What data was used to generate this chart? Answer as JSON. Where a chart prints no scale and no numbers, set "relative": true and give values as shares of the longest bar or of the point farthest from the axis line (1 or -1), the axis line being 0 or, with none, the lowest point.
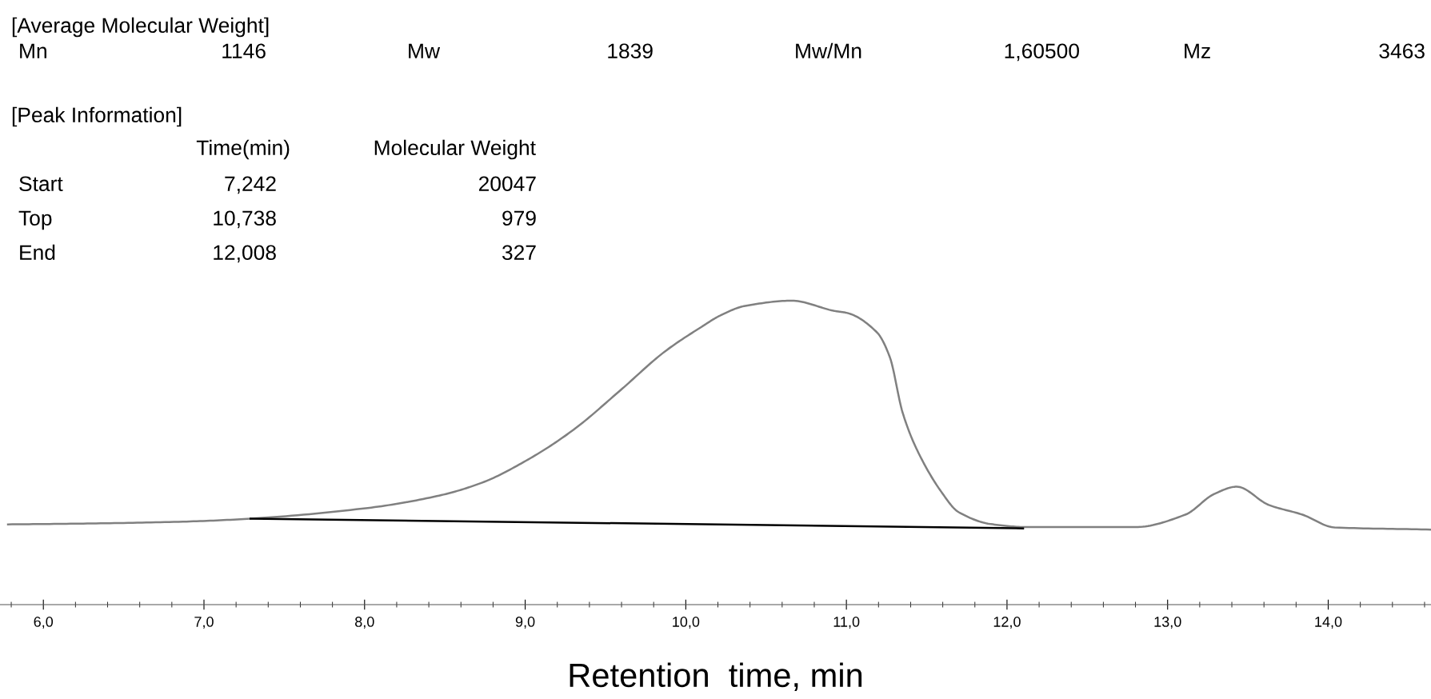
{
  "chart_data": {
    "type": "line",
    "relative": true,
    "xlabel": "Retention  time, min",
    "xlim": [
      5.73,
      14.64
    ],
    "xticks": [
      {
        "value": 6,
        "label": "6,0"
      },
      {
        "value": 7,
        "label": "7,0"
      },
      {
        "value": 8,
        "label": "8,0"
      },
      {
        "value": 9,
        "label": "9,0"
      },
      {
        "value": 10,
        "label": "10,0"
      },
      {
        "value": 11,
        "label": "11,0"
      },
      {
        "value": 12,
        "label": "12,0"
      },
      {
        "value": 13,
        "label": "13,0"
      },
      {
        "value": 14,
        "label": "14,0"
      }
    ],
    "tick_labels": "x",
    "grid": false,
    "legend": false,
    "marker": "none",
    "line_style": "solid",
    "series": [
      {
        "color": "#808080",
        "x": [
          5.78,
          6.3,
          6.87,
          7.29,
          8.02,
          8.45,
          8.73,
          9.02,
          9.3,
          9.59,
          9.87,
          10.11,
          10.21,
          10.37,
          10.66,
          10.92,
          11.01,
          11.19,
          11.27,
          11.35,
          11.44,
          11.59,
          11.7,
          11.9,
          12.13,
          12.8,
          13.11,
          13.29,
          13.43,
          13.63,
          13.84,
          14.04,
          14.64
        ],
        "values": [
          0.264,
          0.267,
          0.273,
          0.283,
          0.318,
          0.357,
          0.401,
          0.478,
          0.575,
          0.704,
          0.833,
          0.918,
          0.95,
          0.983,
          1.0,
          0.967,
          0.959,
          0.896,
          0.815,
          0.632,
          0.509,
          0.372,
          0.304,
          0.265,
          0.255,
          0.255,
          0.296,
          0.364,
          0.388,
          0.328,
          0.296,
          0.254,
          0.247
        ]
      },
      {
        "color": "#000000",
        "x": [
          7.29,
          12.1
        ],
        "values": [
          0.283,
          0.251
        ]
      }
    ],
    "annotations": [
      "[Average Molecular Weight]",
      "Mn",
      "1146",
      "Mw",
      "1839",
      "Mw/Mn",
      "1,60500",
      "Mz",
      "3463",
      "[Peak Information]",
      "Time(min)",
      "Molecular Weight",
      "Start",
      "7,242",
      "20047",
      "Top",
      "10,738",
      "979",
      "End",
      "12,008",
      "327"
    ]
  }
}
